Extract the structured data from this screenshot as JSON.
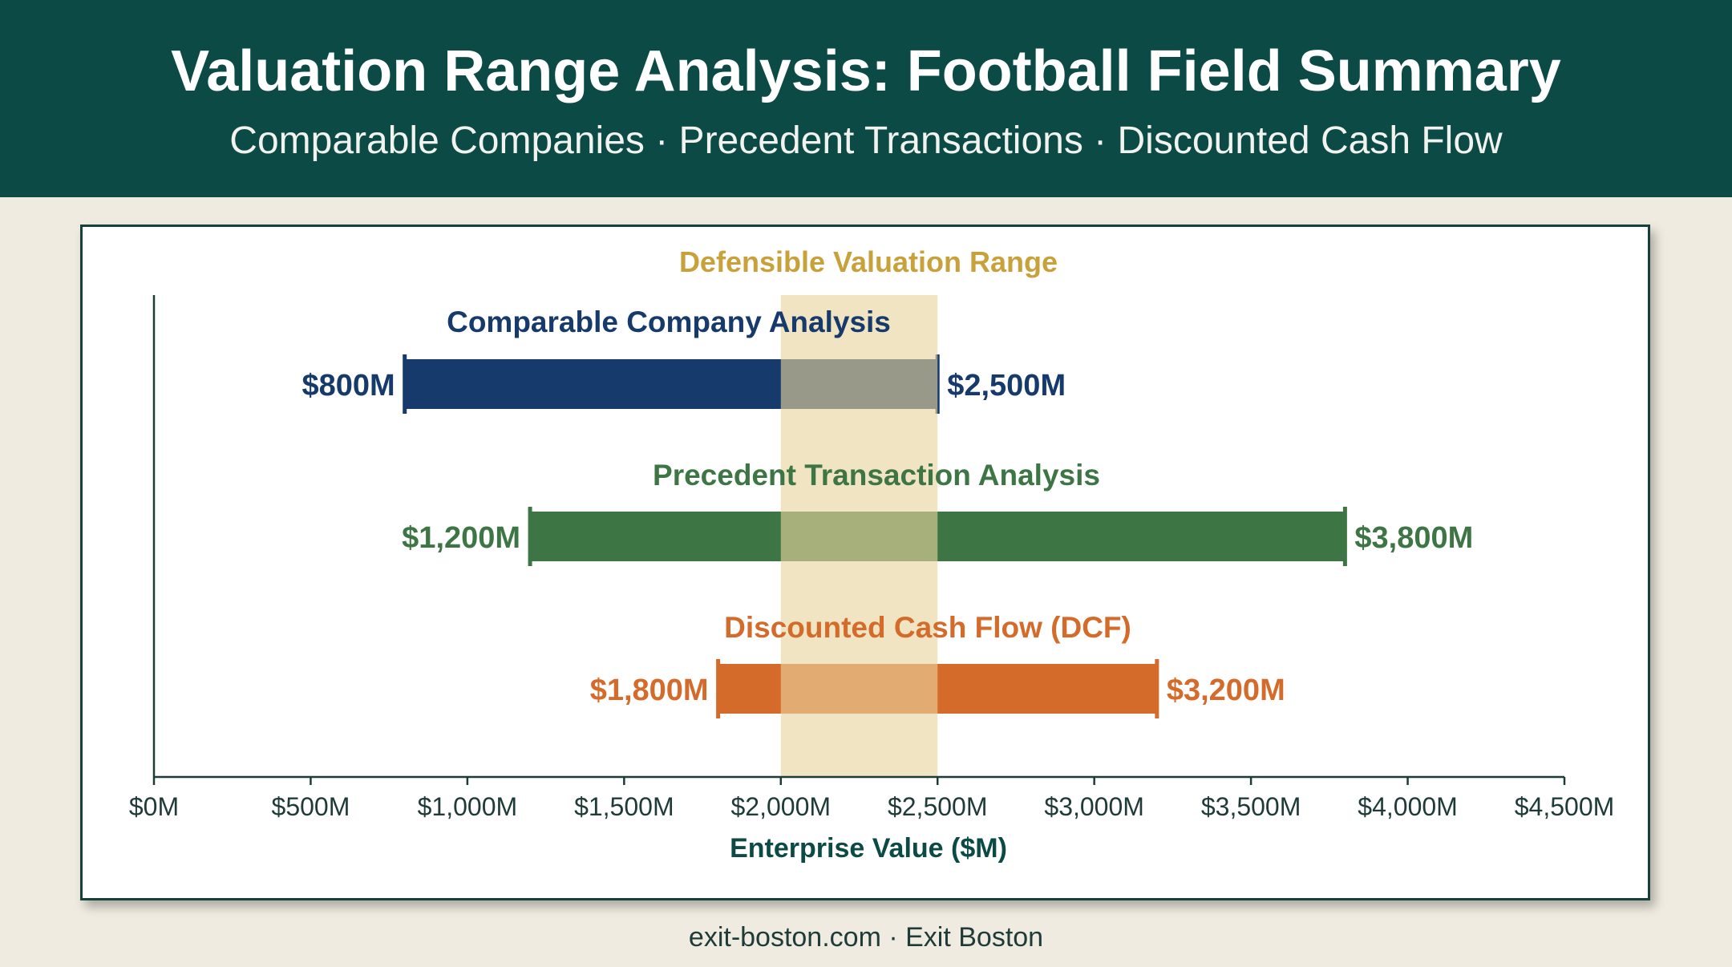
{
  "header": {
    "title": "Valuation Range Analysis: Football Field Summary",
    "subtitle": "Comparable Companies · Precedent Transactions · Discounted Cash Flow"
  },
  "footer": {
    "text": "exit-boston.com · Exit Boston"
  },
  "colors": {
    "banner": "#0b4a45",
    "comparable": "#163a6b",
    "precedent": "#3d7545",
    "dcf": "#d46b2a",
    "highlight": "#e9d39d",
    "highlight_label": "#c9a13a",
    "axis": "#1f3b38"
  },
  "chart_data": {
    "type": "bar",
    "orientation": "horizontal-range",
    "xlabel": "Enterprise Value ($M)",
    "xlim": [
      0,
      4500
    ],
    "xticks": [
      0,
      500,
      1000,
      1500,
      2000,
      2500,
      3000,
      3500,
      4000,
      4500
    ],
    "xtick_labels": [
      "$0M",
      "$500M",
      "$1,000M",
      "$1,500M",
      "$2,000M",
      "$2,500M",
      "$3,000M",
      "$3,500M",
      "$4,000M",
      "$4,500M"
    ],
    "grid": false,
    "highlight_range": {
      "label": "Defensible Valuation Range",
      "low": 2000,
      "high": 2500
    },
    "series": [
      {
        "name": "Comparable Company Analysis",
        "low": 800,
        "high": 2500,
        "low_label": "$800M",
        "high_label": "$2,500M"
      },
      {
        "name": "Precedent Transaction Analysis",
        "low": 1200,
        "high": 3800,
        "low_label": "$1,200M",
        "high_label": "$3,800M"
      },
      {
        "name": "Discounted Cash Flow (DCF)",
        "low": 1800,
        "high": 3200,
        "low_label": "$1,800M",
        "high_label": "$3,200M"
      }
    ]
  }
}
